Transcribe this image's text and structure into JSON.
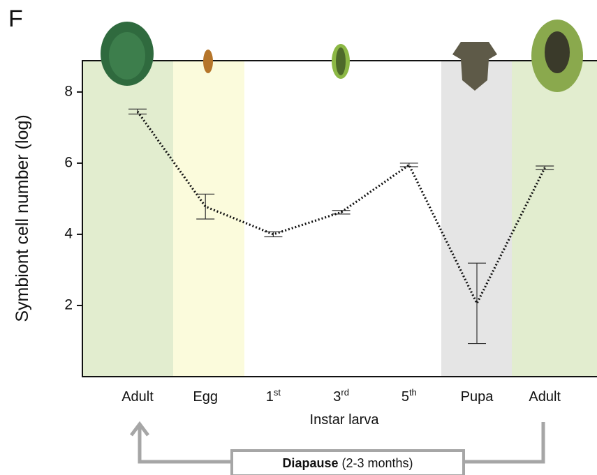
{
  "chart_data": {
    "type": "line",
    "panel_label": "F",
    "ylabel": "Symbiont cell number (log)",
    "xlabel": "Instar larva",
    "categories": [
      "Adult",
      "Egg",
      "1st",
      "3rd",
      "5th",
      "Pupa",
      "Adult"
    ],
    "values": [
      7.45,
      4.78,
      4.0,
      4.62,
      5.95,
      2.06,
      5.87
    ],
    "errors": [
      0.07,
      0.35,
      0.07,
      0.05,
      0.05,
      1.13,
      0.05
    ],
    "color": "#111111",
    "line_style": "dotted",
    "ylim": [
      0,
      8.88
    ],
    "yticks": [
      2,
      4,
      6,
      8
    ],
    "annotation": {
      "bold": "Diapause",
      "rest": "(2-3 months)"
    }
  }
}
